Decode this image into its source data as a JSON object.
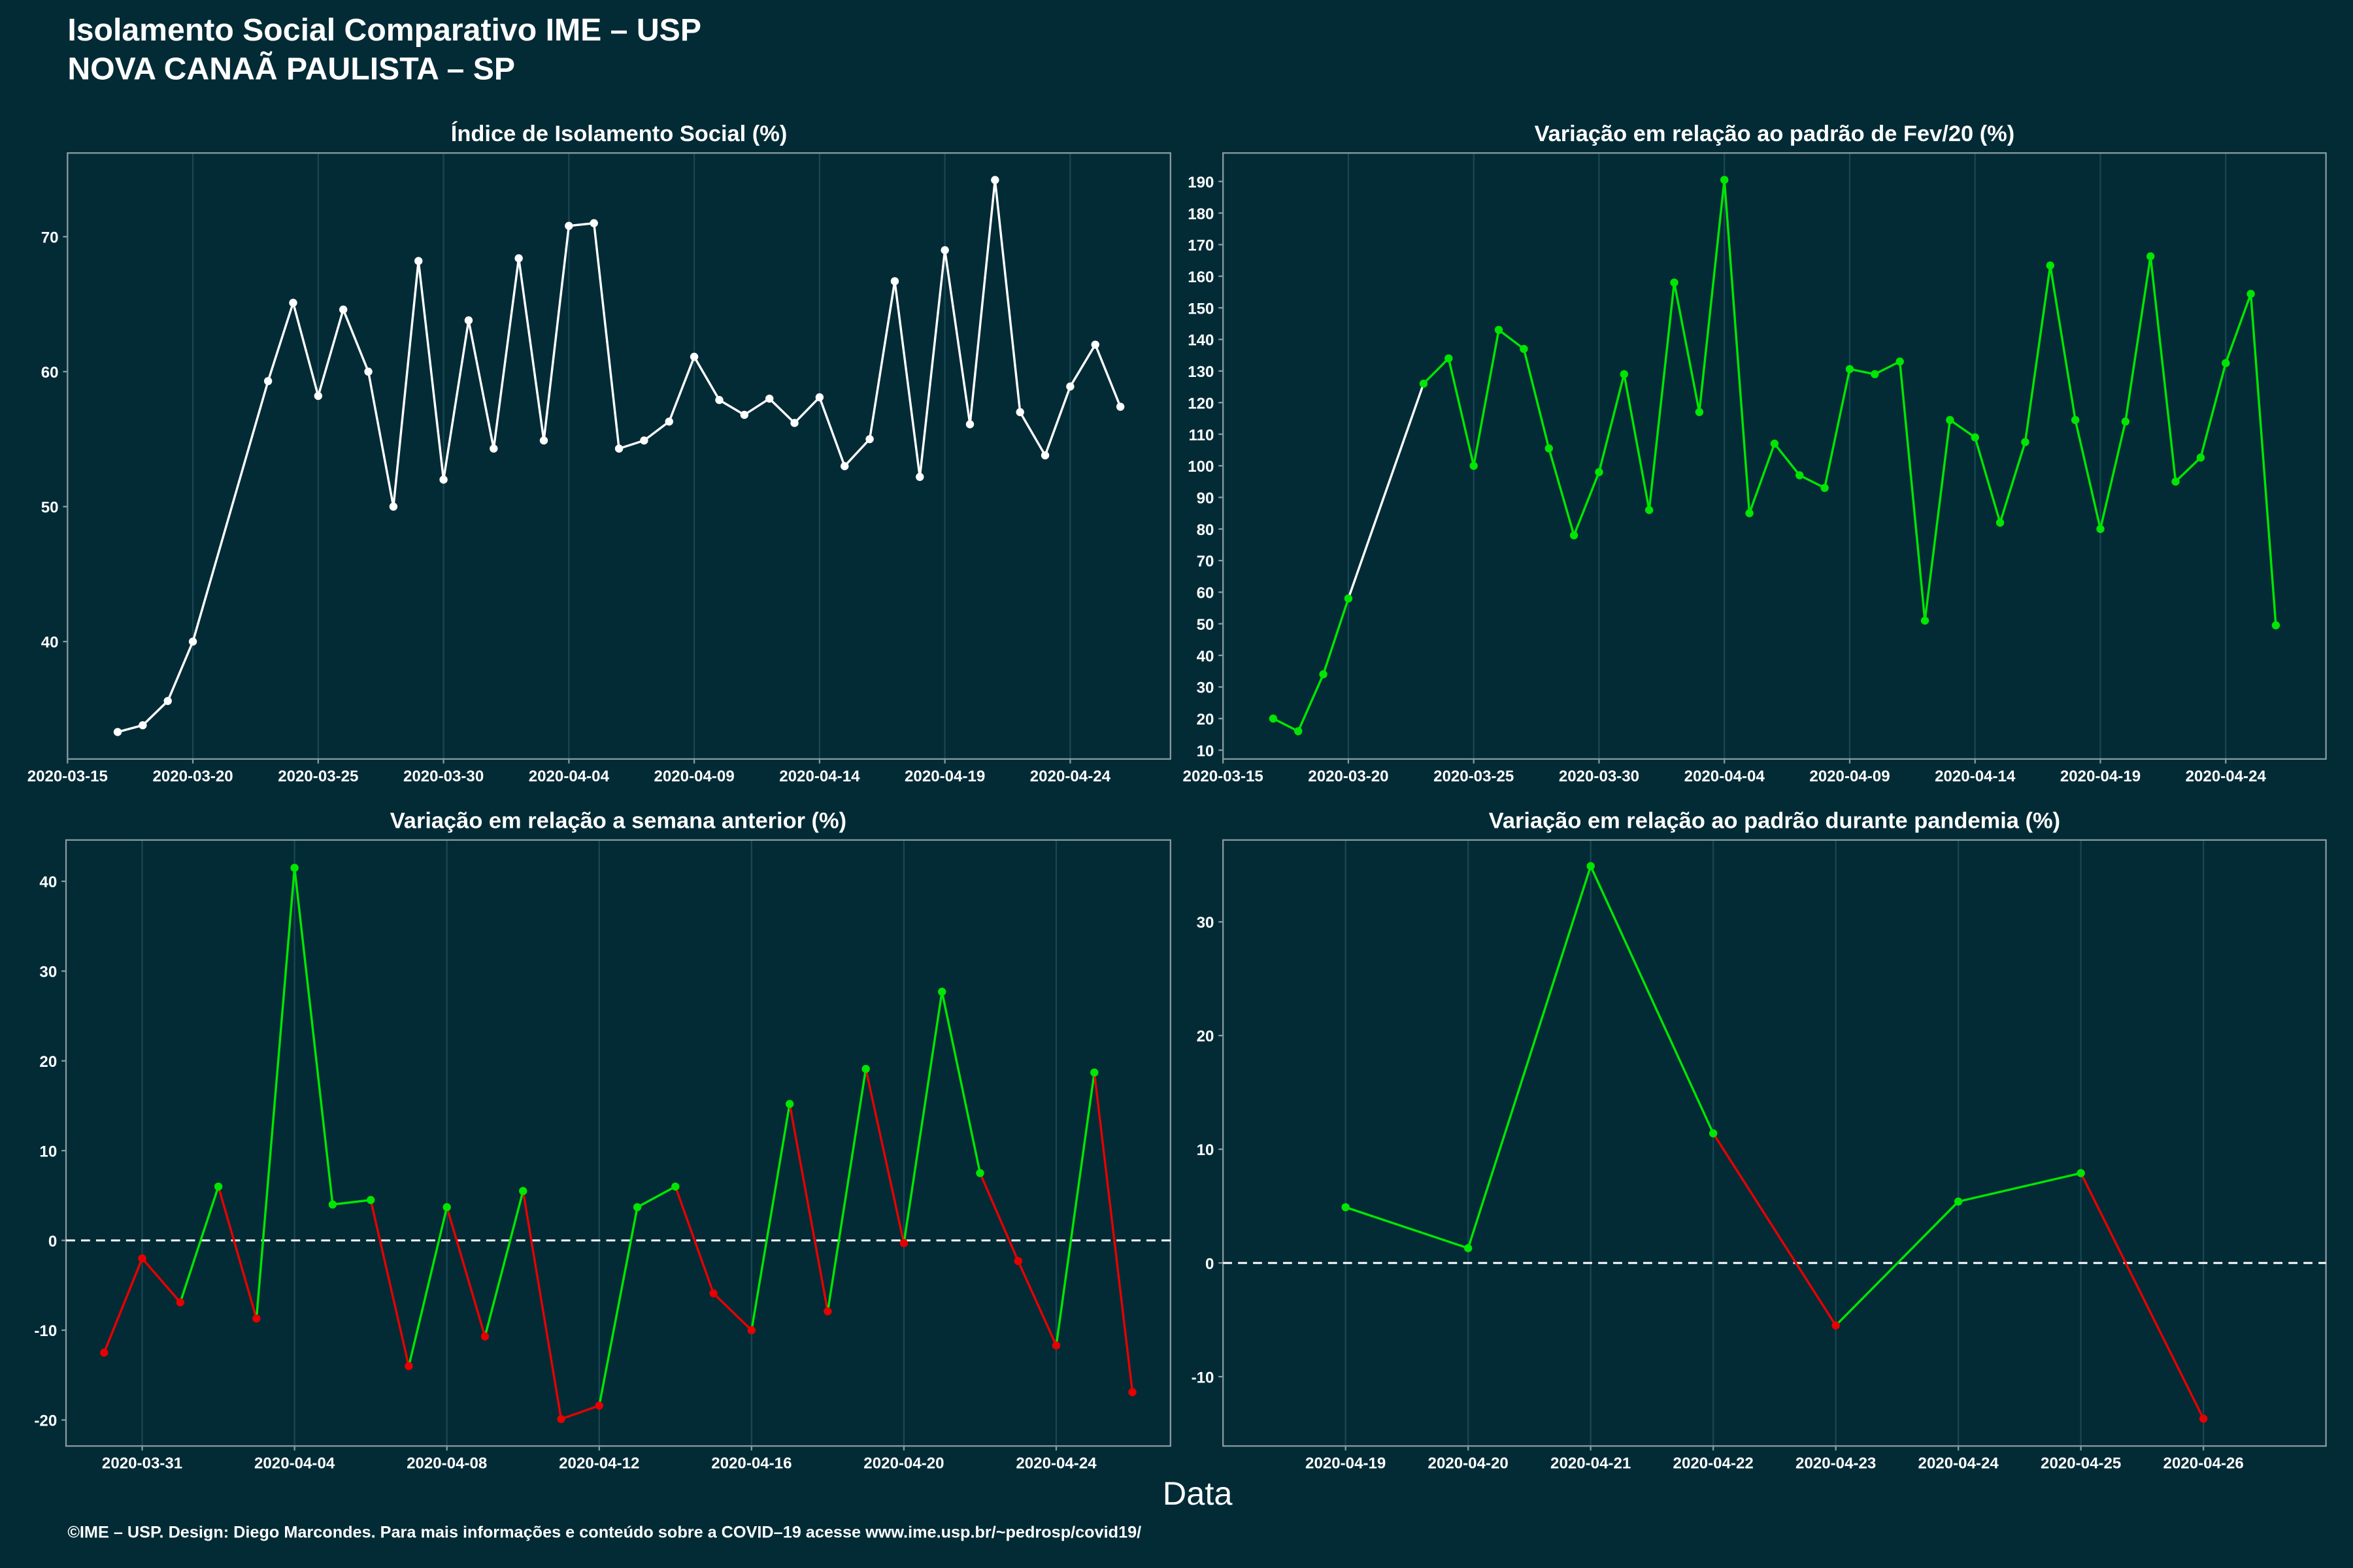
{
  "title": "Isolamento Social Comparativo IME – USP",
  "subtitle": "NOVA CANAÃ PAULISTA – SP",
  "xlabel": "Data",
  "footer": "©IME – USP. Design: Diego Marcondes. Para mais informações e conteúdo sobre a COVID–19 acesse www.ime.usp.br/~pedrosp/covid19/",
  "chart_data": [
    {
      "type": "line",
      "title": "Índice de Isolamento Social (%)",
      "color": "#ffffff",
      "gap_color": "#ffffff",
      "grid": "x",
      "x": [
        "2020-03-17",
        "2020-03-18",
        "2020-03-19",
        "2020-03-20",
        "2020-03-23",
        "2020-03-24",
        "2020-03-25",
        "2020-03-26",
        "2020-03-27",
        "2020-03-28",
        "2020-03-29",
        "2020-03-30",
        "2020-03-31",
        "2020-04-01",
        "2020-04-02",
        "2020-04-03",
        "2020-04-04",
        "2020-04-05",
        "2020-04-06",
        "2020-04-07",
        "2020-04-08",
        "2020-04-09",
        "2020-04-10",
        "2020-04-11",
        "2020-04-12",
        "2020-04-13",
        "2020-04-14",
        "2020-04-15",
        "2020-04-16",
        "2020-04-17",
        "2020-04-18",
        "2020-04-19",
        "2020-04-20",
        "2020-04-21",
        "2020-04-22",
        "2020-04-23",
        "2020-04-24",
        "2020-04-25",
        "2020-04-26"
      ],
      "values": [
        33.3,
        33.8,
        35.6,
        40.0,
        59.3,
        65.1,
        58.2,
        64.6,
        60.0,
        50.0,
        68.2,
        52.0,
        63.8,
        54.3,
        68.4,
        54.9,
        70.8,
        71.0,
        54.3,
        54.9,
        56.3,
        61.1,
        57.9,
        56.8,
        58.0,
        56.2,
        58.1,
        53.0,
        55.0,
        66.7,
        52.2,
        69.0,
        56.1,
        74.2,
        57.0,
        53.8,
        58.9,
        62.0,
        57.4
      ],
      "xlim": [
        "2020-03-15",
        "2020-04-28"
      ],
      "xticks": [
        "2020-03-15",
        "2020-03-20",
        "2020-03-25",
        "2020-03-30",
        "2020-04-04",
        "2020-04-09",
        "2020-04-14",
        "2020-04-19",
        "2020-04-24"
      ],
      "ylim": [
        31.3,
        76.2
      ],
      "yticks": [
        40,
        50,
        60,
        70
      ]
    },
    {
      "type": "line",
      "title": "Variação em relação ao padrão de Fev/20 (%)",
      "positive_color": "#00e600",
      "negative_color": "#e60000",
      "gap_color": "#ffffff",
      "grid": "x",
      "x": [
        "2020-03-17",
        "2020-03-18",
        "2020-03-19",
        "2020-03-20",
        "2020-03-23",
        "2020-03-24",
        "2020-03-25",
        "2020-03-26",
        "2020-03-27",
        "2020-03-28",
        "2020-03-29",
        "2020-03-30",
        "2020-03-31",
        "2020-04-01",
        "2020-04-02",
        "2020-04-03",
        "2020-04-04",
        "2020-04-05",
        "2020-04-06",
        "2020-04-07",
        "2020-04-08",
        "2020-04-09",
        "2020-04-10",
        "2020-04-11",
        "2020-04-12",
        "2020-04-13",
        "2020-04-14",
        "2020-04-15",
        "2020-04-16",
        "2020-04-17",
        "2020-04-18",
        "2020-04-19",
        "2020-04-20",
        "2020-04-21",
        "2020-04-22",
        "2020-04-23",
        "2020-04-24",
        "2020-04-25",
        "2020-04-26"
      ],
      "values": [
        20,
        16,
        34,
        58,
        126,
        134,
        100,
        143,
        137,
        105.5,
        78,
        98,
        129,
        86,
        158,
        117,
        190.5,
        85,
        107,
        97,
        93,
        130.6,
        129,
        133,
        51,
        114.5,
        109,
        82,
        107.5,
        163.4,
        114.5,
        80,
        114,
        166.3,
        95,
        102.6,
        132.5,
        154.4,
        49.5
      ],
      "xlim": [
        "2020-03-15",
        "2020-04-28"
      ],
      "xticks": [
        "2020-03-15",
        "2020-03-20",
        "2020-03-25",
        "2020-03-30",
        "2020-04-04",
        "2020-04-09",
        "2020-04-14",
        "2020-04-19",
        "2020-04-24"
      ],
      "ylim": [
        7.2,
        199
      ],
      "yticks": [
        10,
        20,
        30,
        40,
        50,
        60,
        70,
        80,
        90,
        100,
        110,
        120,
        130,
        140,
        150,
        160,
        170,
        180,
        190
      ]
    },
    {
      "type": "line",
      "title": "Variação em relação a semana anterior (%)",
      "positive_color": "#00e600",
      "negative_color": "#e60000",
      "zero_line": true,
      "grid": "x",
      "x": [
        "2020-03-30",
        "2020-03-31",
        "2020-04-01",
        "2020-04-02",
        "2020-04-03",
        "2020-04-04",
        "2020-04-05",
        "2020-04-06",
        "2020-04-07",
        "2020-04-08",
        "2020-04-09",
        "2020-04-10",
        "2020-04-11",
        "2020-04-12",
        "2020-04-13",
        "2020-04-14",
        "2020-04-15",
        "2020-04-16",
        "2020-04-17",
        "2020-04-18",
        "2020-04-19",
        "2020-04-20",
        "2020-04-21",
        "2020-04-22",
        "2020-04-23",
        "2020-04-24",
        "2020-04-25",
        "2020-04-26"
      ],
      "values": [
        -12.5,
        -2.0,
        -6.9,
        6.0,
        -8.7,
        41.5,
        4.0,
        4.5,
        -14.0,
        3.7,
        -10.7,
        5.5,
        -19.9,
        -18.4,
        3.7,
        6.0,
        -5.9,
        -10.0,
        15.2,
        -7.9,
        19.1,
        -0.3,
        27.7,
        7.5,
        -2.3,
        -11.7,
        18.7,
        -16.9
      ],
      "xlim": [
        "2020-03-29",
        "2020-04-27"
      ],
      "xticks": [
        "2020-03-31",
        "2020-04-04",
        "2020-04-08",
        "2020-04-12",
        "2020-04-16",
        "2020-04-20",
        "2020-04-24"
      ],
      "ylim": [
        -22.9,
        44.6
      ],
      "yticks": [
        -20,
        -10,
        0,
        10,
        20,
        30,
        40
      ]
    },
    {
      "type": "line",
      "title": "Variação em relação ao padrão durante pandemia (%)",
      "positive_color": "#00e600",
      "negative_color": "#e60000",
      "zero_line": true,
      "grid": "x",
      "x": [
        "2020-04-19",
        "2020-04-20",
        "2020-04-21",
        "2020-04-22",
        "2020-04-23",
        "2020-04-24",
        "2020-04-25",
        "2020-04-26"
      ],
      "values": [
        4.9,
        1.3,
        34.9,
        11.4,
        -5.5,
        5.4,
        7.9,
        -13.7
      ],
      "xlim": [
        "2020-04-18",
        "2020-04-27"
      ],
      "xticks": [
        "2020-04-19",
        "2020-04-20",
        "2020-04-21",
        "2020-04-22",
        "2020-04-23",
        "2020-04-24",
        "2020-04-25",
        "2020-04-26"
      ],
      "ylim": [
        -16.1,
        37.2
      ],
      "yticks": [
        -10,
        0,
        10,
        20,
        30
      ]
    }
  ]
}
